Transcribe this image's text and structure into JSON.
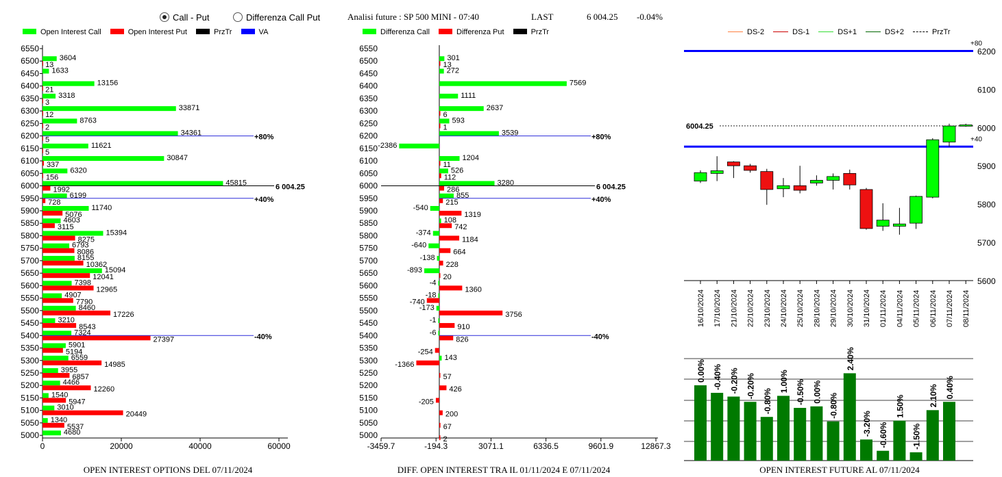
{
  "header": {
    "radio_call_put": "Call - Put",
    "radio_diff": "Differenza Call Put",
    "title": "Analisi future : SP 500 MINI - 07:40",
    "last_label": "LAST",
    "last_value": "6 004.25",
    "change": "-0.04%"
  },
  "legend1": {
    "call": "Open Interest Call",
    "put": "Open Interest Put",
    "przt": "PrzTr",
    "va": "VA"
  },
  "legend2": {
    "call": "Differenza Call",
    "put": "Differenza Put",
    "przt": "PrzTr"
  },
  "legend3": {
    "ds_m2": "DS-2",
    "ds_m1": "DS-1",
    "ds_p1": "DS+1",
    "ds_p2": "DS+2",
    "przt": "PrzTr"
  },
  "captions": {
    "c1": "OPEN INTEREST OPTIONS DEL 07/11/2024",
    "c2": "DIFF. OPEN INTEREST TRA IL 01/11/2024 E 07/11/2024",
    "c3": "OPEN INTEREST FUTURE AL 07/11/2024"
  },
  "colors": {
    "call": "#00ff00",
    "put": "#ff0000",
    "va": "#0000ff",
    "bar_green": "#007a00",
    "cand_green": "#00ff00",
    "cand_red": "#ee1111"
  },
  "chart_data": [
    {
      "type": "bar",
      "orientation": "horizontal",
      "categories": [
        "6550",
        "6500",
        "6450",
        "6400",
        "6350",
        "6300",
        "6250",
        "6200",
        "6150",
        "6100",
        "6050",
        "6000",
        "5950",
        "5900",
        "5850",
        "5800",
        "5750",
        "5700",
        "5650",
        "5600",
        "5550",
        "5500",
        "5450",
        "5400",
        "5350",
        "5300",
        "5250",
        "5200",
        "5150",
        "5100",
        "5050",
        "5000"
      ],
      "series": [
        {
          "name": "Open Interest Call",
          "values": [
            null,
            3604,
            1633,
            13156,
            3318,
            33871,
            8763,
            34361,
            11621,
            30847,
            6320,
            45815,
            6199,
            11740,
            4603,
            15394,
            6793,
            8155,
            15094,
            7398,
            4907,
            8460,
            3210,
            7324,
            5901,
            6559,
            3955,
            4466,
            1540,
            3010,
            1340,
            4680
          ]
        },
        {
          "name": "Open Interest Put",
          "values": [
            null,
            13,
            null,
            21,
            3,
            12,
            2,
            5,
            5,
            337,
            156,
            1992,
            728,
            5076,
            3115,
            8275,
            8086,
            10362,
            12041,
            12965,
            7790,
            17226,
            8543,
            27397,
            5194,
            14985,
            6857,
            12260,
            5947,
            20449,
            5537,
            null
          ]
        }
      ],
      "xticks": [
        "0",
        "20000",
        "40000",
        "60000"
      ],
      "xlim": [
        0,
        60000
      ],
      "annotations": [
        {
          "category": "6200",
          "text": "+80%"
        },
        {
          "category": "6000",
          "text": "6 004.25"
        },
        {
          "category": "5950",
          "text": "+40%"
        },
        {
          "category": "5400",
          "text": "-40%"
        }
      ]
    },
    {
      "type": "bar",
      "orientation": "horizontal",
      "categories": [
        "6550",
        "6500",
        "6450",
        "6400",
        "6350",
        "6300",
        "6250",
        "6200",
        "6150",
        "6100",
        "6050",
        "6000",
        "5950",
        "5900",
        "5850",
        "5800",
        "5750",
        "5700",
        "5650",
        "5600",
        "5550",
        "5500",
        "5450",
        "5400",
        "5350",
        "5300",
        "5250",
        "5200",
        "5150",
        "5100",
        "5050",
        "5000"
      ],
      "series": [
        {
          "name": "Differenza Call",
          "values": [
            null,
            301,
            272,
            7569,
            1111,
            2637,
            593,
            3539,
            -2386,
            1204,
            526,
            3280,
            855,
            -540,
            108,
            -374,
            -640,
            -138,
            -893,
            -4,
            -18,
            -173,
            -1,
            -6,
            null,
            143,
            null,
            null,
            null,
            null,
            null,
            null
          ]
        },
        {
          "name": "Differenza Put",
          "values": [
            null,
            13,
            null,
            null,
            null,
            6,
            1,
            null,
            null,
            11,
            112,
            286,
            215,
            1319,
            742,
            1184,
            664,
            228,
            20,
            1360,
            -740,
            3756,
            910,
            826,
            -254,
            -1366,
            57,
            426,
            -205,
            200,
            67,
            2
          ]
        }
      ],
      "xticks": [
        "-3459.7",
        "-194.3",
        "3071.1",
        "6336.5",
        "9601.9",
        "12867.3"
      ],
      "xlim": [
        -3459.7,
        12867.3
      ],
      "annotations": [
        {
          "category": "6200",
          "text": "+80%"
        },
        {
          "category": "6000",
          "text": "6 004.25"
        },
        {
          "category": "5950",
          "text": "+40%"
        },
        {
          "category": "5400",
          "text": "-40%"
        }
      ]
    },
    {
      "type": "candlestick",
      "dates": [
        "16/10/2024",
        "17/10/2024",
        "21/10/2024",
        "22/10/2024",
        "23/10/2024",
        "24/10/2024",
        "25/10/2024",
        "28/10/2024",
        "29/10/2024",
        "30/10/2024",
        "31/10/2024",
        "01/11/2024",
        "04/11/2024",
        "05/11/2024",
        "06/11/2024",
        "07/11/2024",
        "08/11/2024"
      ],
      "open": [
        5860,
        5880,
        5910,
        5900,
        5885,
        5840,
        5848,
        5855,
        5862,
        5880,
        5838,
        5742,
        5742,
        5750,
        5818,
        5962,
        6004
      ],
      "close": [
        5882,
        5887,
        5900,
        5888,
        5838,
        5848,
        5836,
        5862,
        5872,
        5850,
        5736,
        5758,
        5748,
        5820,
        5968,
        6004,
        6007
      ],
      "high": [
        5888,
        5925,
        5912,
        5905,
        5892,
        5868,
        5900,
        5875,
        5880,
        5890,
        5842,
        5802,
        5790,
        5822,
        5972,
        6010,
        6010
      ],
      "low": [
        5855,
        5860,
        5868,
        5882,
        5798,
        5818,
        5828,
        5848,
        5838,
        5838,
        5733,
        5730,
        5720,
        5735,
        5815,
        5950,
        6002
      ],
      "yticks": [
        "5600",
        "5700",
        "5800",
        "5900",
        "6000",
        "6100",
        "6200"
      ],
      "ylim": [
        5600,
        6208
      ],
      "levels": [
        {
          "label": "+80",
          "value": 6200
        },
        {
          "label": "+40",
          "value": 5950
        },
        {
          "label": "6004.25",
          "value": 6004.25
        }
      ]
    },
    {
      "type": "bar",
      "categories": [
        "16/10/2024",
        "17/10/2024",
        "21/10/2024",
        "22/10/2024",
        "23/10/2024",
        "24/10/2024",
        "25/10/2024",
        "28/10/2024",
        "29/10/2024",
        "30/10/2024",
        "31/10/2024",
        "01/11/2024",
        "04/11/2024",
        "05/11/2024",
        "06/11/2024",
        "07/11/2024"
      ],
      "values": [
        1.0,
        0.9,
        0.85,
        0.78,
        0.58,
        0.86,
        0.7,
        0.72,
        0.52,
        1.16,
        0.28,
        0.13,
        0.53,
        0.11,
        0.67,
        0.78
      ],
      "labels": [
        "0.00%",
        "-0.40%",
        "-0.20%",
        "-0.20%",
        "-0.80%",
        "1.00%",
        "-0.50%",
        "0.00%",
        "-0.80%",
        "2.40%",
        "-3.20%",
        "-0.60%",
        "1.50%",
        "-1.50%",
        "2.10%",
        "0.40%"
      ],
      "grid": true
    }
  ]
}
